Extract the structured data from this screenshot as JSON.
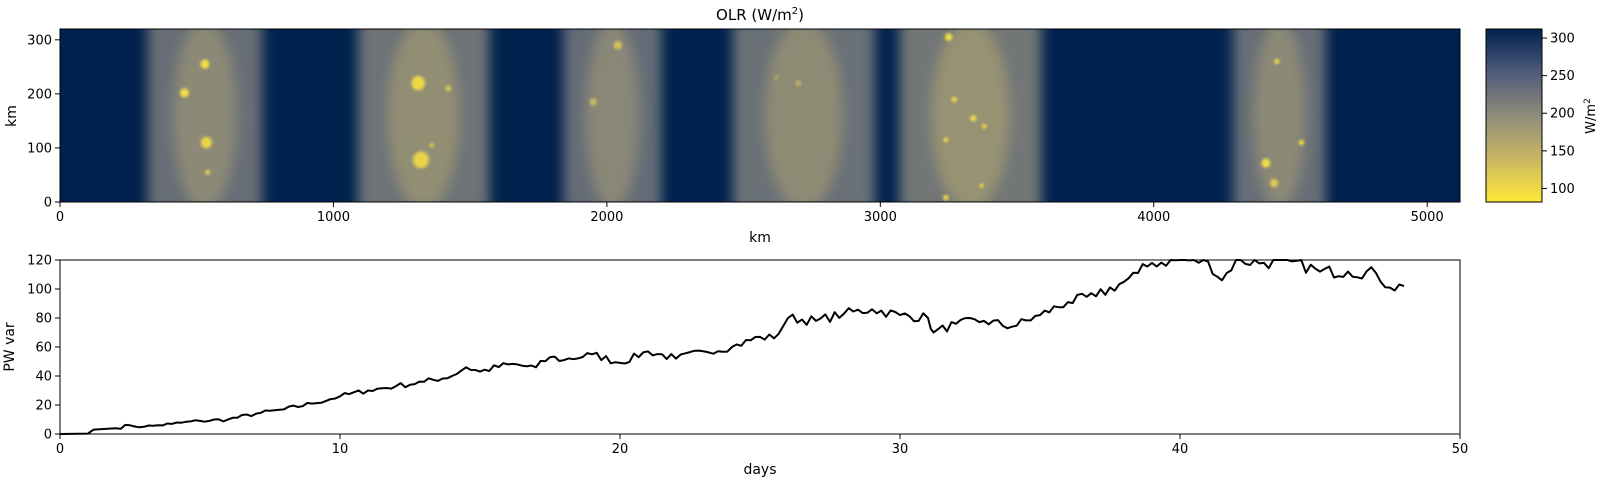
{
  "chart_data": [
    {
      "type": "heatmap",
      "title": "OLR (W/m",
      "title_sup": "2",
      "title_close": ")",
      "xlabel": "km",
      "ylabel": "km",
      "xlim": [
        0,
        5120
      ],
      "ylim": [
        0,
        320
      ],
      "x_ticks": [
        "0",
        "1000",
        "2000",
        "3000",
        "4000",
        "5000"
      ],
      "y_ticks": [
        "0",
        "100",
        "200",
        "300"
      ],
      "colormap": "cividis",
      "colorbar": {
        "label": "W/m",
        "label_sup": "2",
        "range": [
          82,
          312
        ],
        "ticks": [
          "100",
          "150",
          "200",
          "250",
          "300"
        ]
      },
      "convective_bands": [
        {
          "center_km": 530,
          "halfwidth_km": 210,
          "strength": 0.62
        },
        {
          "center_km": 1330,
          "halfwidth_km": 240,
          "strength": 0.66
        },
        {
          "center_km": 2020,
          "halfwidth_km": 180,
          "strength": 0.6
        },
        {
          "center_km": 2720,
          "halfwidth_km": 260,
          "strength": 0.64
        },
        {
          "center_km": 3330,
          "halfwidth_km": 260,
          "strength": 0.7
        },
        {
          "center_km": 4460,
          "halfwidth_km": 170,
          "strength": 0.62
        }
      ],
      "convective_cells": [
        {
          "x_km": 530,
          "y_km": 255,
          "r_km": 14,
          "olr": 95
        },
        {
          "x_km": 455,
          "y_km": 202,
          "r_km": 14,
          "olr": 95
        },
        {
          "x_km": 535,
          "y_km": 110,
          "r_km": 18,
          "olr": 105
        },
        {
          "x_km": 540,
          "y_km": 55,
          "r_km": 8,
          "olr": 110
        },
        {
          "x_km": 1310,
          "y_km": 220,
          "r_km": 22,
          "olr": 100
        },
        {
          "x_km": 1320,
          "y_km": 78,
          "r_km": 26,
          "olr": 105
        },
        {
          "x_km": 1420,
          "y_km": 210,
          "r_km": 9,
          "olr": 115
        },
        {
          "x_km": 1360,
          "y_km": 105,
          "r_km": 7,
          "olr": 115
        },
        {
          "x_km": 2040,
          "y_km": 290,
          "r_km": 14,
          "olr": 130
        },
        {
          "x_km": 1950,
          "y_km": 185,
          "r_km": 12,
          "olr": 140
        },
        {
          "x_km": 3250,
          "y_km": 305,
          "r_km": 12,
          "olr": 95
        },
        {
          "x_km": 3270,
          "y_km": 190,
          "r_km": 9,
          "olr": 105
        },
        {
          "x_km": 3340,
          "y_km": 155,
          "r_km": 10,
          "olr": 100
        },
        {
          "x_km": 3380,
          "y_km": 140,
          "r_km": 8,
          "olr": 105
        },
        {
          "x_km": 3240,
          "y_km": 115,
          "r_km": 8,
          "olr": 105
        },
        {
          "x_km": 3370,
          "y_km": 30,
          "r_km": 7,
          "olr": 110
        },
        {
          "x_km": 3240,
          "y_km": 8,
          "r_km": 9,
          "olr": 105
        },
        {
          "x_km": 4450,
          "y_km": 260,
          "r_km": 8,
          "olr": 95
        },
        {
          "x_km": 4410,
          "y_km": 72,
          "r_km": 14,
          "olr": 95
        },
        {
          "x_km": 4540,
          "y_km": 110,
          "r_km": 9,
          "olr": 105
        },
        {
          "x_km": 4440,
          "y_km": 35,
          "r_km": 13,
          "olr": 115
        },
        {
          "x_km": 2700,
          "y_km": 220,
          "r_km": 10,
          "olr": 150
        },
        {
          "x_km": 2620,
          "y_km": 230,
          "r_km": 8,
          "olr": 160
        }
      ]
    },
    {
      "type": "line",
      "title": "",
      "xlabel": "days",
      "ylabel": "PW var",
      "xlim": [
        0,
        50
      ],
      "ylim": [
        0,
        120
      ],
      "x_ticks": [
        "0",
        "10",
        "20",
        "30",
        "40",
        "50"
      ],
      "y_ticks": [
        "0",
        "20",
        "40",
        "60",
        "80",
        "100",
        "120"
      ],
      "series": [
        {
          "x": [
            0,
            1,
            1.2,
            2,
            2.5,
            3,
            3.5,
            4,
            5,
            6,
            7,
            8,
            9,
            10,
            11,
            12,
            13,
            14,
            14.5,
            15,
            16,
            17,
            17.5,
            18,
            19,
            20,
            21,
            22,
            23,
            24,
            25,
            25.5,
            26,
            27,
            28,
            29,
            30,
            31,
            31.2,
            32,
            33,
            34,
            35,
            36,
            37,
            38,
            38.5,
            39,
            40,
            41,
            41.5,
            42,
            43,
            44,
            45,
            46,
            47,
            47.5,
            48
          ],
          "values": [
            0,
            0.3,
            3,
            4,
            6,
            5,
            6,
            7,
            9,
            10,
            14,
            17,
            21,
            26,
            30,
            33,
            36,
            40,
            46,
            43,
            48,
            46,
            53,
            51,
            55,
            49,
            57,
            52,
            57,
            60,
            67,
            66,
            80,
            78,
            83,
            86,
            82,
            80,
            70,
            76,
            78,
            74,
            82,
            91,
            95,
            105,
            111,
            118,
            120,
            119,
            106,
            120,
            118,
            119,
            112,
            112,
            111,
            101,
            102
          ]
        }
      ]
    }
  ]
}
